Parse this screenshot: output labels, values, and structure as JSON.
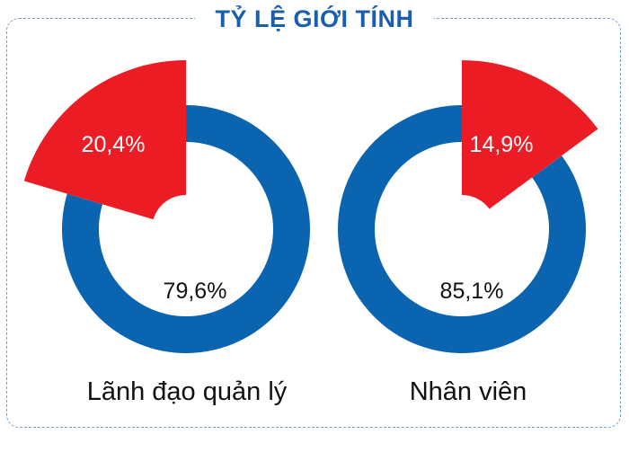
{
  "title": "TỶ LỆ GIỚI TÍNH",
  "colors": {
    "male": "#0a64b0",
    "female": "#ec1c24",
    "title": "#1a5faf",
    "border": "#6a9fd0"
  },
  "chart_data": [
    {
      "type": "pie",
      "category": "Lãnh đạo quản lý",
      "slices": [
        {
          "label": "20,4%",
          "value": 20.4,
          "color": "#ec1c24"
        },
        {
          "label": "79,6%",
          "value": 79.6,
          "color": "#0a64b0"
        }
      ]
    },
    {
      "type": "pie",
      "category": "Nhân viên",
      "slices": [
        {
          "label": "14,9%",
          "value": 14.9,
          "color": "#ec1c24"
        },
        {
          "label": "85,1%",
          "value": 85.1,
          "color": "#0a64b0"
        }
      ]
    }
  ]
}
